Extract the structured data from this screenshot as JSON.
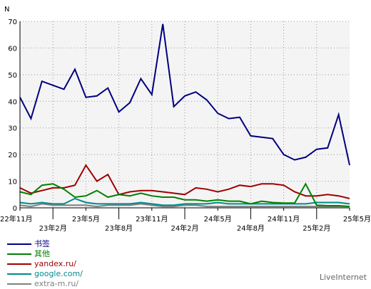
{
  "chart_data": {
    "type": "line",
    "ylabel": "N",
    "ylim": [
      0,
      70
    ],
    "yticks": [
      0,
      10,
      20,
      30,
      40,
      50,
      60,
      70
    ],
    "grid": true,
    "xticks": [
      {
        "i": 0,
        "label": "22年11月",
        "row": 1
      },
      {
        "i": 3,
        "label": "23年2月",
        "row": 2
      },
      {
        "i": 6,
        "label": "23年5月",
        "row": 1
      },
      {
        "i": 9,
        "label": "23年8月",
        "row": 2
      },
      {
        "i": 12,
        "label": "23年11月",
        "row": 1
      },
      {
        "i": 15,
        "label": "24年2月",
        "row": 2
      },
      {
        "i": 18,
        "label": "24年5月",
        "row": 1
      },
      {
        "i": 21,
        "label": "24年8月",
        "row": 2
      },
      {
        "i": 24,
        "label": "24年11月",
        "row": 1
      },
      {
        "i": 27,
        "label": "25年2月",
        "row": 2
      },
      {
        "i": 30,
        "label": "25年5月",
        "row": 1
      }
    ],
    "series": [
      {
        "name": "书签",
        "color": "#000080",
        "values": [
          41.5,
          33.5,
          47.5,
          46,
          44.5,
          52,
          41.5,
          42,
          45,
          36,
          39.5,
          48.5,
          42.5,
          69,
          38,
          42,
          43.5,
          40.5,
          35.5,
          33.5,
          34,
          27,
          26.5,
          26,
          20,
          18,
          19,
          22,
          22.5,
          35,
          16
        ]
      },
      {
        "name": "其他",
        "color": "#008000",
        "values": [
          6,
          5,
          8.5,
          9,
          7,
          4,
          4.5,
          6.5,
          4,
          5,
          4.5,
          5.5,
          4.5,
          4,
          4,
          3,
          3,
          2.5,
          3,
          2.5,
          2.5,
          1.5,
          2.5,
          2,
          1.8,
          1.8,
          9,
          1,
          0.8,
          0.8,
          0.5
        ]
      },
      {
        "name": "yandex.ru/",
        "color": "#a00000",
        "values": [
          7.5,
          5.5,
          6.5,
          7.5,
          7.5,
          8.5,
          16,
          10,
          12.5,
          5,
          6,
          6.5,
          6.5,
          6,
          5.5,
          5,
          7.5,
          7,
          6,
          7,
          8.5,
          8,
          9,
          9,
          8.5,
          6,
          4.5,
          4.5,
          5,
          4.5,
          3.5
        ]
      },
      {
        "name": "google.com/",
        "color": "#008b8b",
        "values": [
          2,
          1.5,
          2,
          1.5,
          1.5,
          3.5,
          2,
          1.5,
          1.5,
          1.5,
          1.5,
          2,
          1.5,
          1,
          1,
          1.5,
          1.5,
          1.5,
          2,
          1.5,
          1.5,
          1.5,
          1.5,
          1.5,
          1.5,
          1.5,
          1.5,
          2,
          2,
          2,
          1.5
        ]
      },
      {
        "name": "extra-m.ru/",
        "color": "#808080",
        "values": [
          1,
          0.5,
          1.5,
          1,
          1,
          1,
          1,
          0.5,
          1,
          1,
          1,
          1.5,
          1,
          0.5,
          0.5,
          1,
          1,
          0.5,
          0.5,
          0.5,
          0.5,
          0.5,
          0.5,
          0.5,
          0.5,
          0.5,
          0.5,
          0.5,
          0.5,
          0.5,
          0.5
        ]
      }
    ]
  },
  "brand": "LiveInternet"
}
